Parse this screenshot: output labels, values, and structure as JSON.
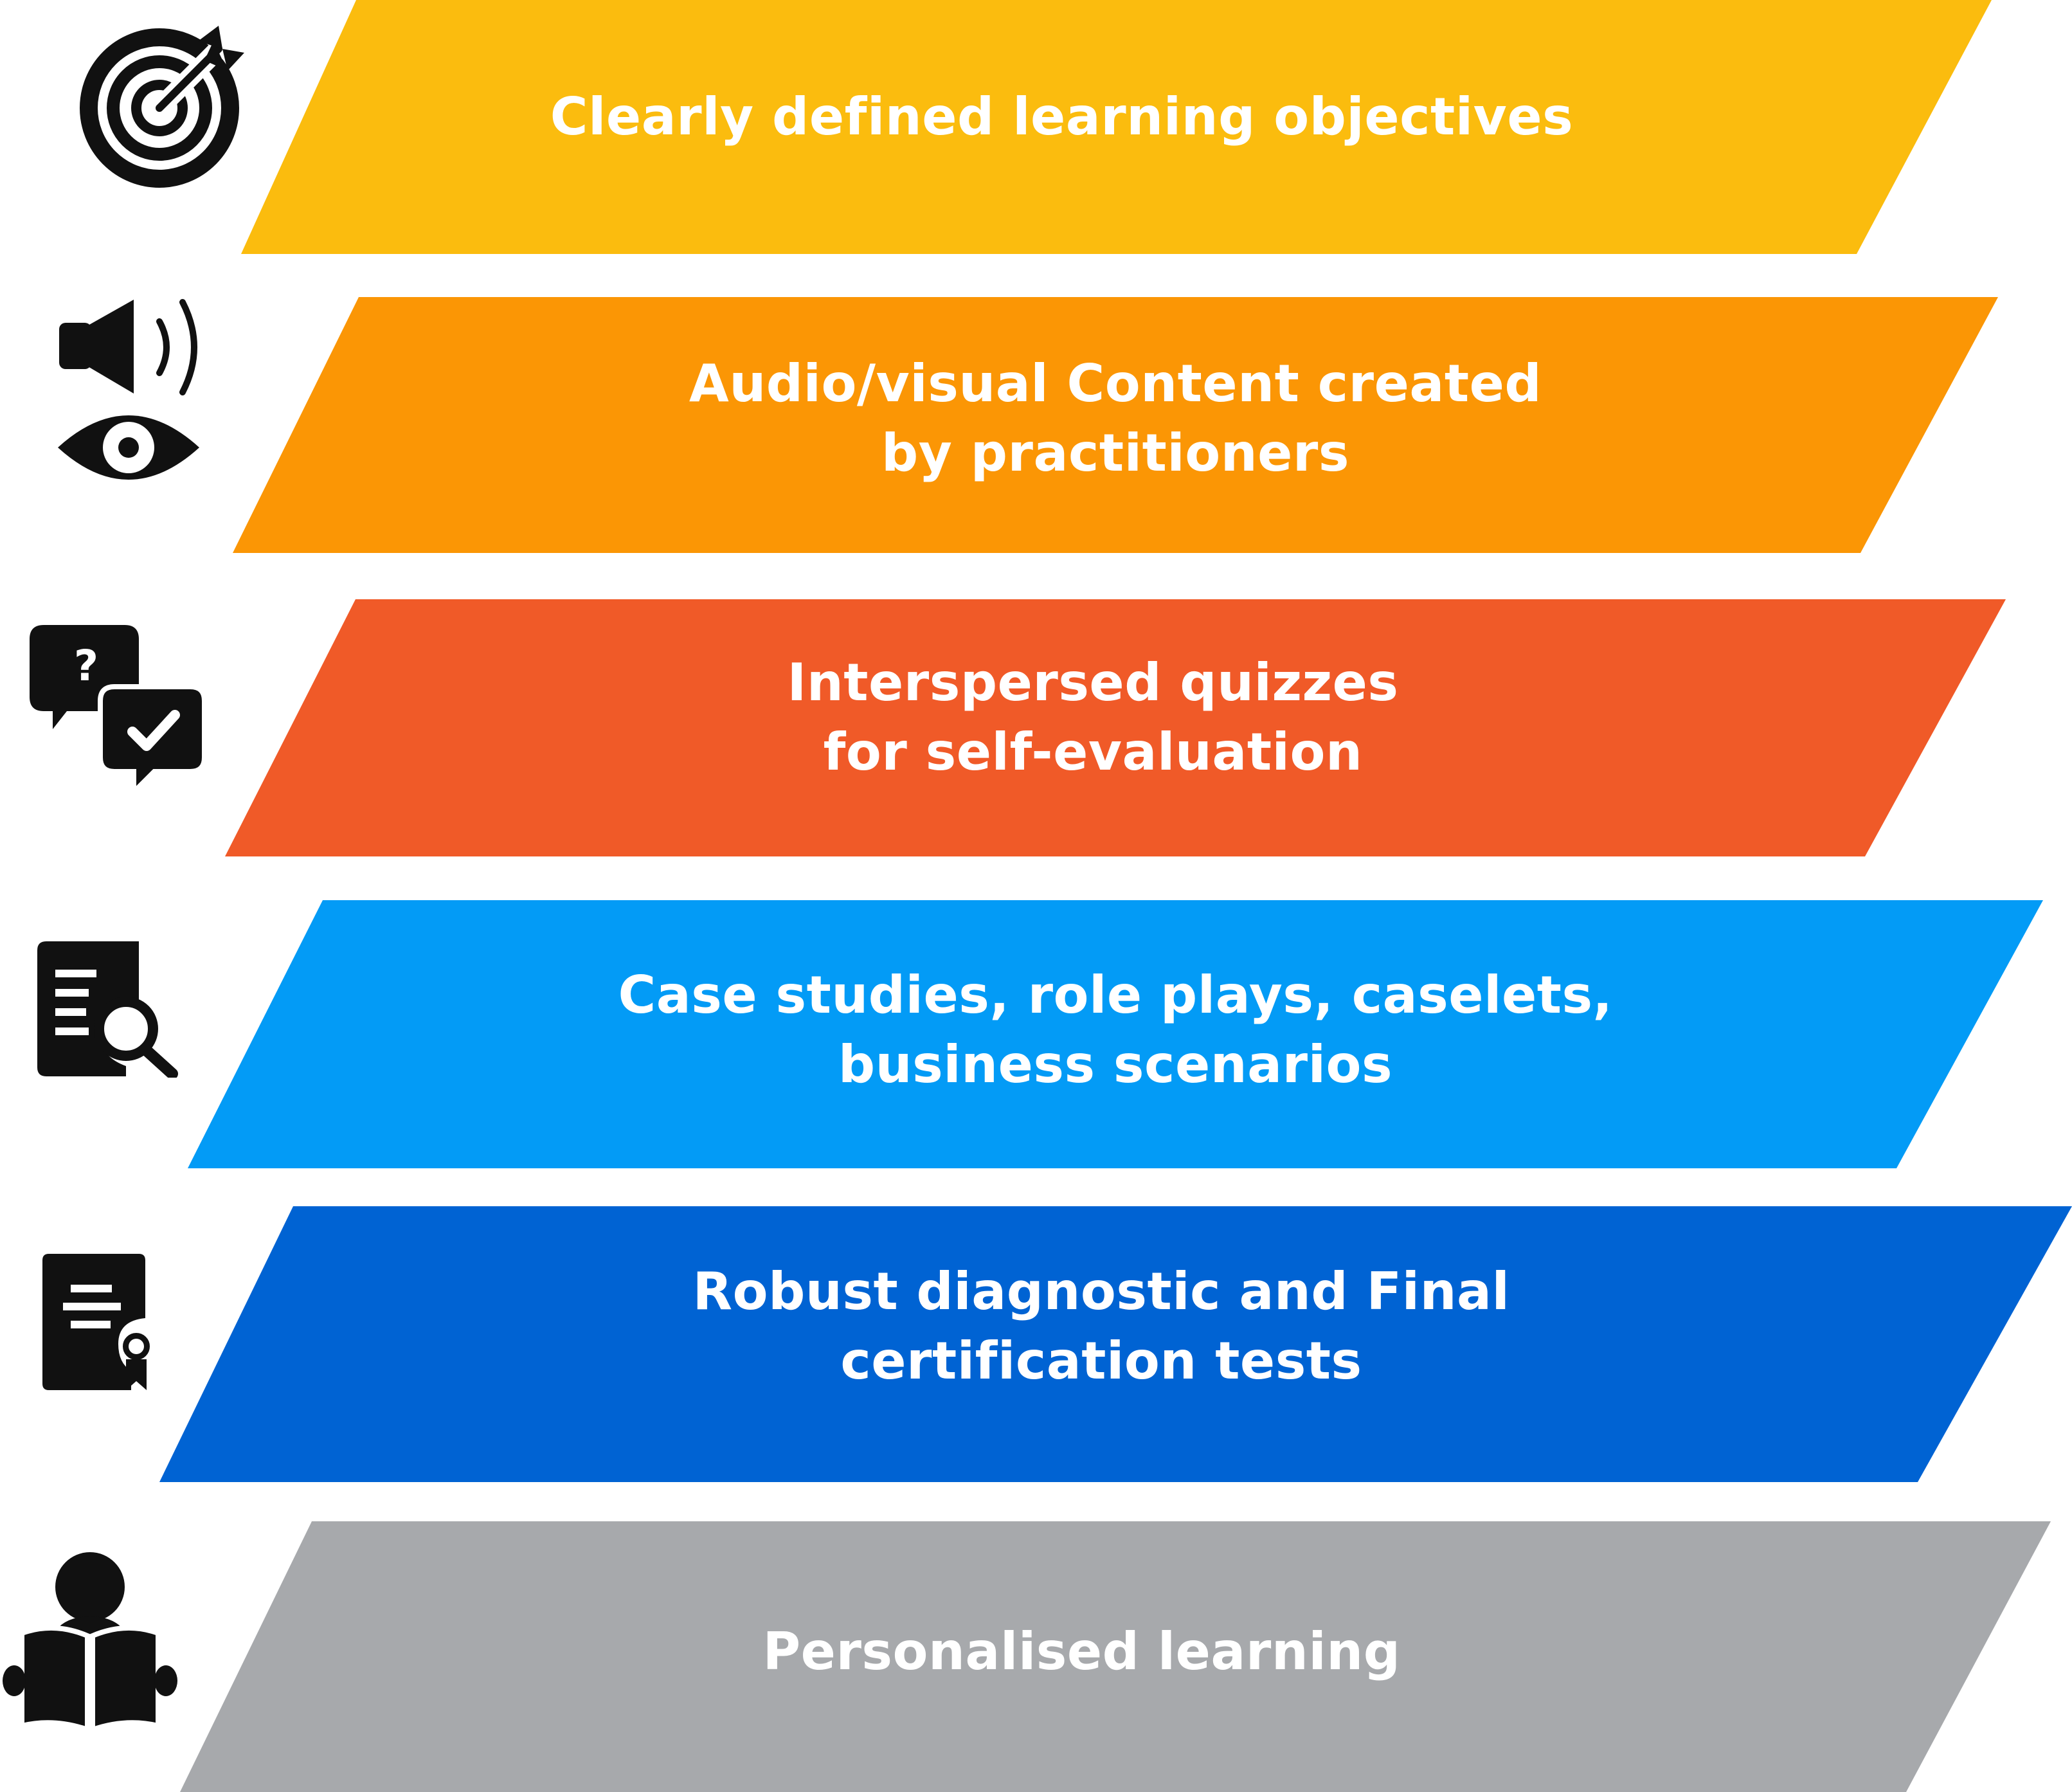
{
  "items": [
    {
      "id": "objectives",
      "lines": [
        "Clearly defined learning objectives"
      ],
      "color": "#FBBC0E",
      "icon": "target-icon"
    },
    {
      "id": "audio-visual",
      "lines": [
        "Audio/visual Content created",
        "by practitioners"
      ],
      "color": "#FB9605",
      "icon": "speaker-eye-icon"
    },
    {
      "id": "quizzes",
      "lines": [
        "Interspersed quizzes",
        "for self-evaluation"
      ],
      "color": "#F05A28",
      "icon": "quiz-chat-icon"
    },
    {
      "id": "case-studies",
      "lines": [
        "Case studies, role plays, caselets,",
        "business scenarios"
      ],
      "color": "#039BF6",
      "icon": "case-search-icon"
    },
    {
      "id": "tests",
      "lines": [
        "Robust diagnostic and Final",
        "certification tests"
      ],
      "color": "#0063D3",
      "icon": "certificate-icon"
    },
    {
      "id": "personalised",
      "lines": [
        "Personalised learning"
      ],
      "color": "#A7A9AC",
      "icon": "reader-icon"
    }
  ]
}
